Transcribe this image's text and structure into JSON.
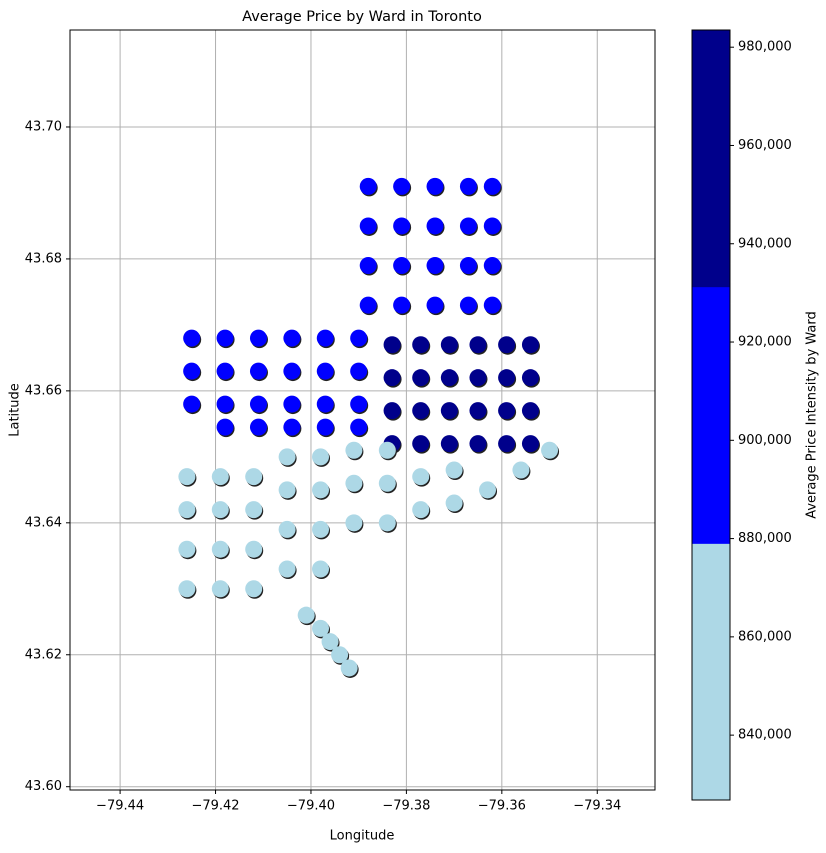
{
  "chart_data": {
    "type": "scatter",
    "title": "Average Price by Ward in Toronto",
    "x_label": "Longitude",
    "y_label": "Latitude",
    "colorbar_label": "Average Price Intensity by Ward",
    "xlim": [
      -79.4505,
      -79.3279
    ],
    "ylim": [
      43.5995,
      43.7147
    ],
    "xticks": [
      {
        "value": -79.44,
        "label": "−79.44"
      },
      {
        "value": -79.42,
        "label": "−79.42"
      },
      {
        "value": -79.4,
        "label": "−79.40"
      },
      {
        "value": -79.38,
        "label": "−79.38"
      },
      {
        "value": -79.36,
        "label": "−79.36"
      },
      {
        "value": -79.34,
        "label": "−79.34"
      }
    ],
    "yticks": [
      {
        "value": 43.6,
        "label": "43.60"
      },
      {
        "value": 43.62,
        "label": "43.62"
      },
      {
        "value": 43.64,
        "label": "43.64"
      },
      {
        "value": 43.66,
        "label": "43.66"
      },
      {
        "value": 43.68,
        "label": "43.68"
      },
      {
        "value": 43.7,
        "label": "43.70"
      }
    ],
    "grid": true,
    "clim": [
      826800,
      983500
    ],
    "colors": [
      "#add8e6",
      "#0000ff",
      "#00008b"
    ],
    "colorbar_ticks": [
      {
        "value": 840000,
        "label": "840,000"
      },
      {
        "value": 860000,
        "label": "860,000"
      },
      {
        "value": 880000,
        "label": "880,000"
      },
      {
        "value": 900000,
        "label": "900,000"
      },
      {
        "value": 920000,
        "label": "920,000"
      },
      {
        "value": 940000,
        "label": "940,000"
      },
      {
        "value": 960000,
        "label": "960,000"
      },
      {
        "value": 980000,
        "label": "980,000"
      }
    ],
    "x": [
      -79.425,
      -79.418,
      -79.411,
      -79.404,
      -79.397,
      -79.39,
      -79.425,
      -79.418,
      -79.411,
      -79.404,
      -79.397,
      -79.39,
      -79.425,
      -79.418,
      -79.411,
      -79.404,
      -79.397,
      -79.39,
      -79.418,
      -79.411,
      -79.404,
      -79.397,
      -79.39,
      -79.388,
      -79.381,
      -79.374,
      -79.367,
      -79.362,
      -79.388,
      -79.381,
      -79.374,
      -79.367,
      -79.362,
      -79.388,
      -79.381,
      -79.374,
      -79.367,
      -79.362,
      -79.388,
      -79.381,
      -79.374,
      -79.367,
      -79.362,
      -79.383,
      -79.377,
      -79.371,
      -79.365,
      -79.359,
      -79.354,
      -79.383,
      -79.377,
      -79.371,
      -79.365,
      -79.359,
      -79.354,
      -79.383,
      -79.377,
      -79.371,
      -79.365,
      -79.359,
      -79.354,
      -79.383,
      -79.377,
      -79.371,
      -79.365,
      -79.359,
      -79.354,
      -79.426,
      -79.419,
      -79.412,
      -79.426,
      -79.419,
      -79.412,
      -79.426,
      -79.419,
      -79.412,
      -79.426,
      -79.419,
      -79.412,
      -79.405,
      -79.398,
      -79.405,
      -79.398,
      -79.405,
      -79.398,
      -79.405,
      -79.398,
      -79.391,
      -79.384,
      -79.391,
      -79.384,
      -79.391,
      -79.384,
      -79.377,
      -79.377,
      -79.37,
      -79.37,
      -79.363,
      -79.356,
      -79.35,
      -79.401,
      -79.398,
      -79.396,
      -79.394,
      -79.392
    ],
    "y": [
      43.658,
      43.658,
      43.658,
      43.658,
      43.658,
      43.658,
      43.663,
      43.663,
      43.663,
      43.663,
      43.663,
      43.663,
      43.668,
      43.668,
      43.668,
      43.668,
      43.668,
      43.668,
      43.6545,
      43.6545,
      43.6545,
      43.6545,
      43.6545,
      43.673,
      43.673,
      43.673,
      43.673,
      43.673,
      43.679,
      43.679,
      43.679,
      43.679,
      43.679,
      43.685,
      43.685,
      43.685,
      43.685,
      43.685,
      43.691,
      43.691,
      43.691,
      43.691,
      43.691,
      43.652,
      43.652,
      43.652,
      43.652,
      43.652,
      43.652,
      43.657,
      43.657,
      43.657,
      43.657,
      43.657,
      43.657,
      43.662,
      43.662,
      43.662,
      43.662,
      43.662,
      43.662,
      43.667,
      43.667,
      43.667,
      43.667,
      43.667,
      43.667,
      43.63,
      43.63,
      43.63,
      43.636,
      43.636,
      43.636,
      43.642,
      43.642,
      43.642,
      43.647,
      43.647,
      43.647,
      43.633,
      43.633,
      43.639,
      43.639,
      43.645,
      43.645,
      43.65,
      43.65,
      43.64,
      43.64,
      43.646,
      43.646,
      43.651,
      43.651,
      43.642,
      43.647,
      43.643,
      43.648,
      43.645,
      43.648,
      43.651,
      43.626,
      43.624,
      43.622,
      43.62,
      43.618
    ],
    "values": [
      905000,
      905000,
      905000,
      905000,
      905000,
      905000,
      905000,
      905000,
      905000,
      905000,
      905000,
      905000,
      905000,
      905000,
      905000,
      905000,
      905000,
      905000,
      905000,
      905000,
      905000,
      905000,
      905000,
      905000,
      905000,
      905000,
      905000,
      905000,
      905000,
      905000,
      905000,
      905000,
      905000,
      905000,
      905000,
      905000,
      905000,
      905000,
      905000,
      905000,
      905000,
      905000,
      905000,
      983500,
      983500,
      983500,
      983500,
      983500,
      983500,
      983500,
      983500,
      983500,
      983500,
      983500,
      983500,
      983500,
      983500,
      983500,
      983500,
      983500,
      983500,
      983500,
      983500,
      983500,
      983500,
      983500,
      983500,
      826800,
      826800,
      826800,
      826800,
      826800,
      826800,
      826800,
      826800,
      826800,
      826800,
      826800,
      826800,
      826800,
      826800,
      826800,
      826800,
      826800,
      826800,
      826800,
      826800,
      826800,
      826800,
      826800,
      826800,
      826800,
      826800,
      826800,
      826800,
      826800,
      826800,
      826800,
      826800,
      826800,
      826800,
      826800,
      826800,
      826800,
      826800
    ]
  }
}
